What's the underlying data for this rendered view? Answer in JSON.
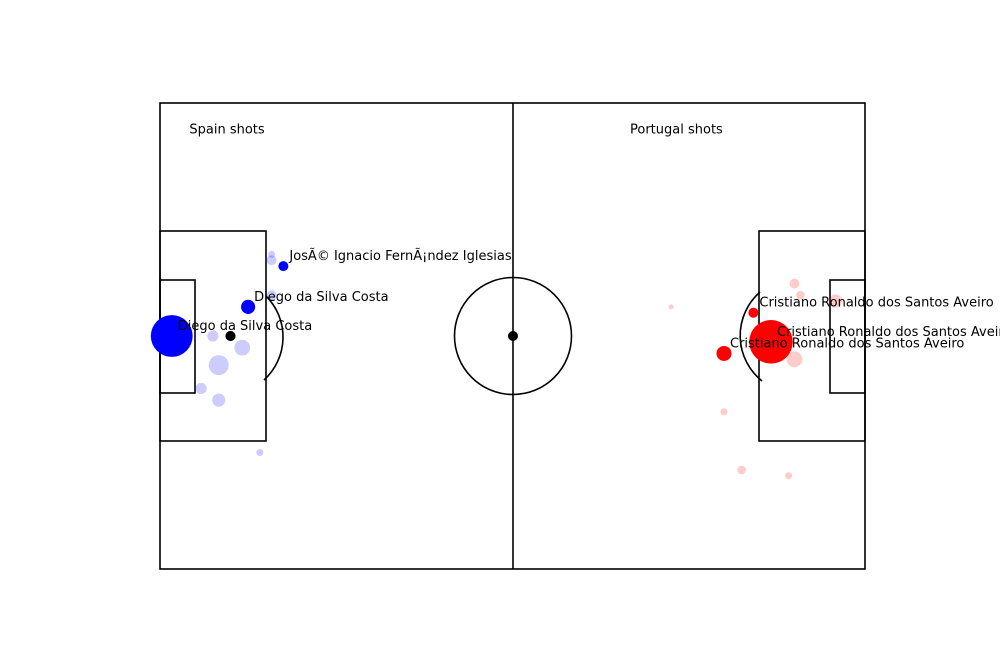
{
  "chart_data": {
    "type": "scatter",
    "title": "",
    "xlim": [
      0,
      120
    ],
    "ylim": [
      0,
      80
    ],
    "annotations": [
      {
        "text": "Spain shots",
        "x": 5,
        "y": 75.5
      },
      {
        "text": "Portugal shots",
        "x": 80,
        "y": 75.5
      }
    ],
    "series": [
      {
        "name": "Spain shots",
        "color": "#0000ff",
        "points": [
          {
            "x": 2,
            "y": 40,
            "xg": 0.7,
            "goal": true,
            "label": "Diego da Silva Costa"
          },
          {
            "x": 15,
            "y": 45,
            "xg": 0.08,
            "goal": true,
            "label": "Diego da Silva Costa"
          },
          {
            "x": 21,
            "y": 52,
            "xg": 0.04,
            "goal": true,
            "label": "JosÃ© Ignacio FernÃ¡ndez Iglesias"
          },
          {
            "x": 12,
            "y": 40,
            "xg": 0.04,
            "goal": false,
            "label": "",
            "marker_color": "#000000"
          },
          {
            "x": 19,
            "y": 53,
            "xg": 0.04,
            "goal": false,
            "label": ""
          },
          {
            "x": 19,
            "y": 47,
            "xg": 0.04,
            "goal": false,
            "label": ""
          },
          {
            "x": 19,
            "y": 54,
            "xg": 0.02,
            "goal": false,
            "label": ""
          },
          {
            "x": 9,
            "y": 40,
            "xg": 0.05,
            "goal": false,
            "label": ""
          },
          {
            "x": 14,
            "y": 38,
            "xg": 0.1,
            "goal": false,
            "label": ""
          },
          {
            "x": 10,
            "y": 35,
            "xg": 0.16,
            "goal": false,
            "label": ""
          },
          {
            "x": 7,
            "y": 31,
            "xg": 0.05,
            "goal": false,
            "label": ""
          },
          {
            "x": 10,
            "y": 29,
            "xg": 0.07,
            "goal": false,
            "label": ""
          },
          {
            "x": 17,
            "y": 20,
            "xg": 0.02,
            "goal": false,
            "label": ""
          }
        ]
      },
      {
        "name": "Portugal shots",
        "color": "#ff0000",
        "points": [
          {
            "x": 104,
            "y": 39,
            "xg": 0.76,
            "goal": true,
            "label": "Cristiano Ronaldo dos Santos Aveiro"
          },
          {
            "x": 101,
            "y": 44,
            "xg": 0.04,
            "goal": true,
            "label": "Cristiano Ronaldo dos Santos Aveiro"
          },
          {
            "x": 96,
            "y": 37,
            "xg": 0.09,
            "goal": true,
            "label": "Cristiano Ronaldo dos Santos Aveiro"
          },
          {
            "x": 108,
            "y": 36,
            "xg": 0.1,
            "goal": false,
            "label": ""
          },
          {
            "x": 115,
            "y": 46,
            "xg": 0.07,
            "goal": false,
            "label": ""
          },
          {
            "x": 109,
            "y": 47,
            "xg": 0.03,
            "goal": false,
            "label": ""
          },
          {
            "x": 108,
            "y": 49,
            "xg": 0.04,
            "goal": false,
            "label": ""
          },
          {
            "x": 87,
            "y": 45,
            "xg": 0.01,
            "goal": false,
            "label": ""
          },
          {
            "x": 96,
            "y": 27,
            "xg": 0.02,
            "goal": false,
            "label": ""
          },
          {
            "x": 99,
            "y": 17,
            "xg": 0.03,
            "goal": false,
            "label": ""
          },
          {
            "x": 107,
            "y": 16,
            "xg": 0.02,
            "goal": false,
            "label": ""
          }
        ]
      }
    ]
  }
}
